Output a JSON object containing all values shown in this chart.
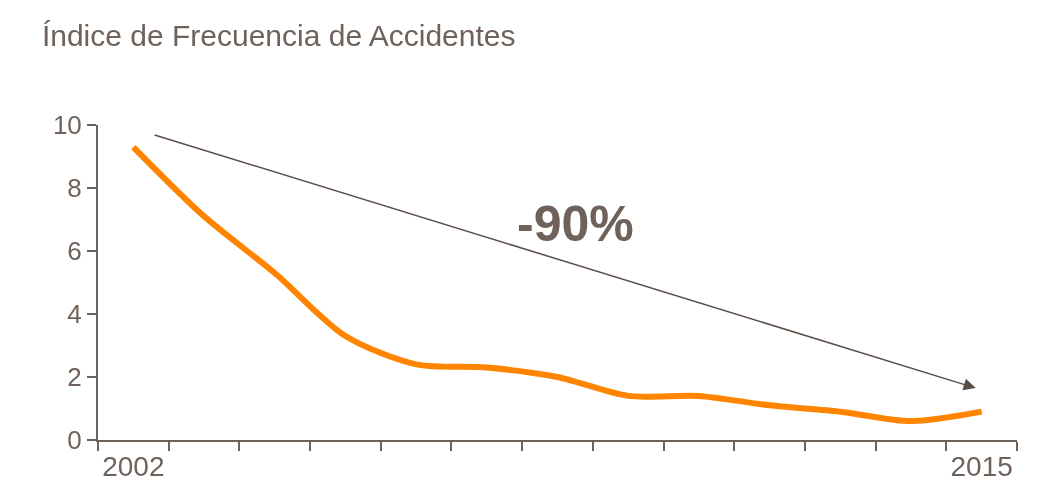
{
  "chart_data": {
    "type": "line",
    "title": "Índice de Frecuencia de Accidentes",
    "categories": [
      "2002",
      null,
      null,
      null,
      null,
      null,
      null,
      null,
      null,
      null,
      null,
      null,
      "2015"
    ],
    "series": [
      {
        "color": "#ff8400",
        "values": [
          9.3,
          7.1,
          5.3,
          3.3,
          2.4,
          2.3,
          2.0,
          1.4,
          1.4,
          1.1,
          0.9,
          0.6,
          0.9
        ]
      }
    ],
    "ylim": [
      0,
      10
    ],
    "yticks": [
      0,
      2,
      4,
      6,
      8,
      10
    ],
    "marker": "none",
    "line_style": "solid",
    "annotations": [
      "-90%"
    ]
  }
}
